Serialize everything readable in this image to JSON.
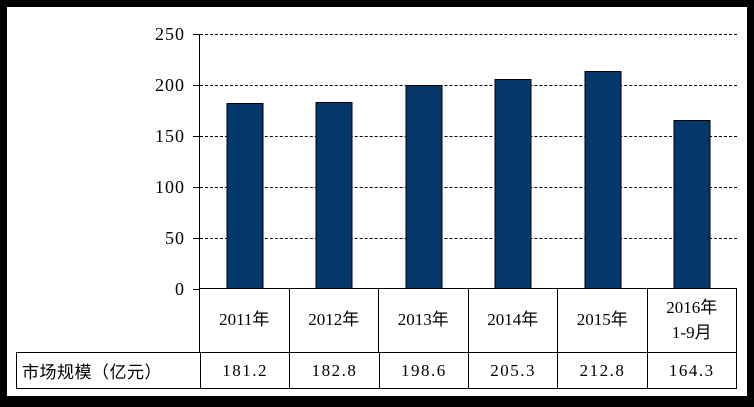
{
  "frame": {
    "border_color": "#000000",
    "background_color": "#ffffff"
  },
  "chart_data": {
    "type": "bar",
    "title": "",
    "xlabel": "",
    "ylabel": "",
    "categories": [
      "2011年",
      "2012年",
      "2013年",
      "2014年",
      "2015年",
      "2016年\n1-9月"
    ],
    "values": [
      181.2,
      182.8,
      198.6,
      205.3,
      212.8,
      164.3
    ],
    "series": [
      {
        "name": "市场规模（亿元）",
        "values": [
          181.2,
          182.8,
          198.6,
          205.3,
          212.8,
          164.3
        ]
      }
    ],
    "ylim": [
      0,
      250
    ],
    "yticks": [
      250,
      200,
      150,
      100,
      50,
      0
    ],
    "ytick_labels": [
      "250",
      "200",
      "150",
      "100",
      "50",
      "0"
    ],
    "grid": "horizontal-dashed",
    "legend_position": "none",
    "bar_color": "#04386a",
    "bar_border_color": "#000000",
    "data_table_shown": true
  },
  "data_table": {
    "row_header": "市场规模（亿元）",
    "values_display": [
      "181.2",
      "182.8",
      "198.6",
      "205.3",
      "212.8",
      "164.3"
    ]
  }
}
